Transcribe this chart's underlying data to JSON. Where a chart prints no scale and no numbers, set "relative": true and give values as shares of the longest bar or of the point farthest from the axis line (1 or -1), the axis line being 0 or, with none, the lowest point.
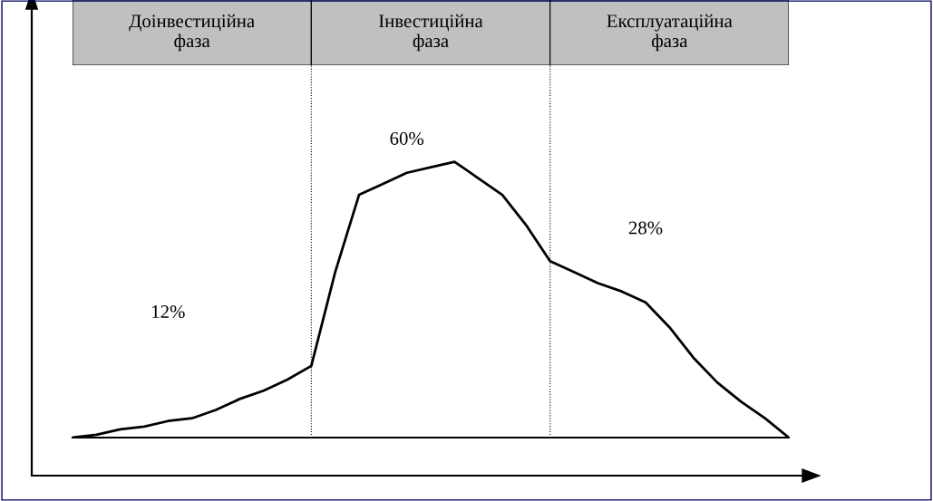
{
  "chart_data": {
    "type": "line",
    "relative": true,
    "tick_labels": false,
    "legend": false,
    "marker": "none",
    "line_style": "solid",
    "categories": [
      null,
      null,
      null,
      null,
      null,
      null,
      null,
      null,
      null,
      null,
      null,
      null,
      null,
      null,
      null,
      null,
      null,
      null,
      null,
      null,
      null,
      null,
      null,
      null,
      null,
      null,
      null,
      null,
      null,
      null,
      null
    ],
    "series": [
      {
        "color": "#000000",
        "values": [
          0,
          0.01,
          0.03,
          0.04,
          0.06,
          0.07,
          0.1,
          0.14,
          0.17,
          0.21,
          0.26,
          0.6,
          0.88,
          0.92,
          0.96,
          0.98,
          1,
          0.94,
          0.88,
          0.77,
          0.64,
          0.6,
          0.56,
          0.53,
          0.49,
          0.4,
          0.29,
          0.2,
          0.13,
          0.07,
          0
        ]
      }
    ],
    "annotations": [
      "Доінвестиційна фаза",
      "Інвестиційна фаза",
      "Експлуатаційна фаза",
      "12%",
      "60%",
      "28%"
    ]
  }
}
